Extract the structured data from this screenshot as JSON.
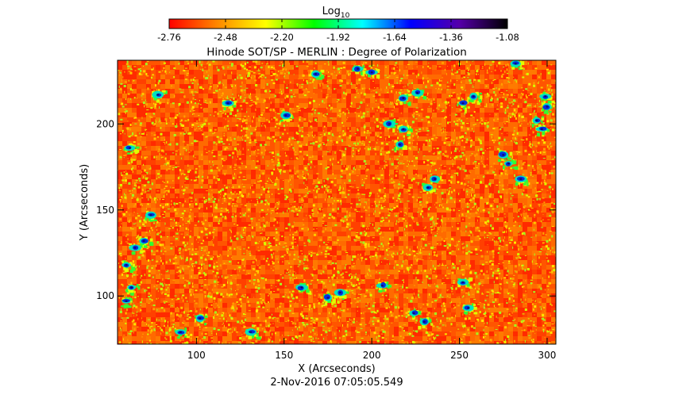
{
  "chart_data": {
    "type": "heatmap",
    "title": "Hinode SOT/SP - MERLIN : Degree of Polarization",
    "xlabel": "X (Arcseconds)",
    "ylabel": "Y (Arcseconds)",
    "timestamp": "2-Nov-2016 07:05:05.549",
    "colorbar": {
      "label_base": "Log",
      "label_sub": "10",
      "ticks": [
        "-2.76",
        "-2.48",
        "-2.20",
        "-1.92",
        "-1.64",
        "-1.36",
        "-1.08"
      ],
      "range": [
        -2.76,
        -1.08
      ],
      "colormap": [
        "#ff0000",
        "#ff8800",
        "#ffff00",
        "#00ff00",
        "#00ffff",
        "#0000ff",
        "#5500aa",
        "#000000"
      ]
    },
    "xlim": [
      55,
      305
    ],
    "ylim": [
      72,
      237
    ],
    "x_ticks": [
      {
        "value": 100,
        "label": "100"
      },
      {
        "value": 150,
        "label": "150"
      },
      {
        "value": 200,
        "label": "200"
      },
      {
        "value": 250,
        "label": "250"
      },
      {
        "value": 300,
        "label": "300"
      }
    ],
    "y_ticks": [
      {
        "value": 100,
        "label": "100"
      },
      {
        "value": 150,
        "label": "150"
      },
      {
        "value": 200,
        "label": "200"
      }
    ],
    "background_colors": [
      "#ff2a00",
      "#ff4000",
      "#ff5500",
      "#ff6a00",
      "#ff7a00"
    ],
    "speckle_colors": [
      "#ffa000",
      "#ffc800",
      "#ffe600",
      "#d8ff00",
      "#a0ff20"
    ],
    "strong_field_patches": [
      {
        "x": 62,
        "y": 186
      },
      {
        "x": 65,
        "y": 128
      },
      {
        "x": 60,
        "y": 118
      },
      {
        "x": 63,
        "y": 105
      },
      {
        "x": 60,
        "y": 97
      },
      {
        "x": 74,
        "y": 147
      },
      {
        "x": 70,
        "y": 132
      },
      {
        "x": 78,
        "y": 217
      },
      {
        "x": 91,
        "y": 79
      },
      {
        "x": 102,
        "y": 87
      },
      {
        "x": 118,
        "y": 212
      },
      {
        "x": 131,
        "y": 79
      },
      {
        "x": 151,
        "y": 205
      },
      {
        "x": 168,
        "y": 229
      },
      {
        "x": 160,
        "y": 105
      },
      {
        "x": 175,
        "y": 99
      },
      {
        "x": 182,
        "y": 102
      },
      {
        "x": 192,
        "y": 232
      },
      {
        "x": 200,
        "y": 230
      },
      {
        "x": 206,
        "y": 106
      },
      {
        "x": 210,
        "y": 200
      },
      {
        "x": 218,
        "y": 197
      },
      {
        "x": 216,
        "y": 188
      },
      {
        "x": 218,
        "y": 215
      },
      {
        "x": 226,
        "y": 218
      },
      {
        "x": 224,
        "y": 90
      },
      {
        "x": 230,
        "y": 85
      },
      {
        "x": 232,
        "y": 163
      },
      {
        "x": 236,
        "y": 168
      },
      {
        "x": 252,
        "y": 212
      },
      {
        "x": 258,
        "y": 216
      },
      {
        "x": 255,
        "y": 93
      },
      {
        "x": 252,
        "y": 108
      },
      {
        "x": 275,
        "y": 182
      },
      {
        "x": 278,
        "y": 177
      },
      {
        "x": 285,
        "y": 168
      },
      {
        "x": 294,
        "y": 202
      },
      {
        "x": 297,
        "y": 197
      },
      {
        "x": 300,
        "y": 210
      },
      {
        "x": 299,
        "y": 216
      },
      {
        "x": 282,
        "y": 235
      }
    ]
  }
}
